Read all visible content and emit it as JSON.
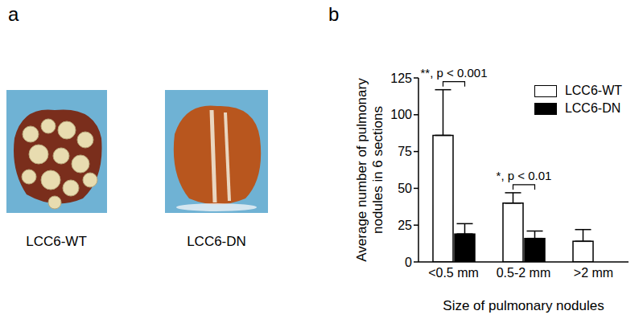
{
  "figure": {
    "panel_a": {
      "label": "a",
      "captions": [
        "LCC6-WT",
        "LCC6-DN"
      ]
    },
    "panel_b_label": "b"
  },
  "chart_data": {
    "type": "bar",
    "categories": [
      "<0.5 mm",
      "0.5-2 mm",
      ">2 mm"
    ],
    "series": [
      {
        "name": "LCC6-WT",
        "color": "#ffffff",
        "values": [
          86,
          40,
          14
        ],
        "errors": [
          31,
          7,
          8
        ]
      },
      {
        "name": "LCC6-DN",
        "color": "#000000",
        "values": [
          19,
          16,
          null
        ],
        "errors": [
          7,
          5,
          null
        ]
      }
    ],
    "ylim": [
      0,
      125
    ],
    "yticks": [
      0,
      25,
      50,
      75,
      100,
      125
    ],
    "y_label": "Average number of pulmonary nodules in 6 sections",
    "x_label": "Size of pulmonary nodules",
    "legend": "top right",
    "grid": false,
    "annotations": [
      {
        "category": "<0.5 mm",
        "text": "**, p < 0.001"
      },
      {
        "category": "0.5-2 mm",
        "text": "*, p < 0.01"
      }
    ]
  }
}
